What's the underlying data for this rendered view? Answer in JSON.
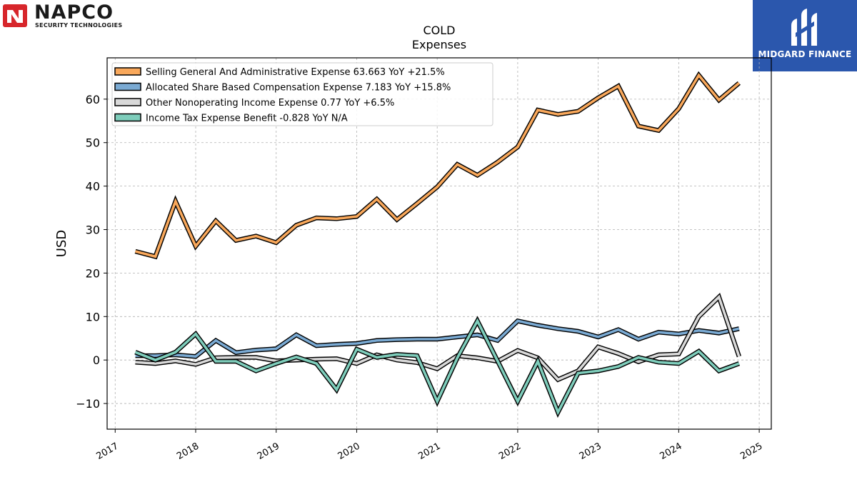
{
  "branding": {
    "left_logo_word": "NAPCO",
    "left_logo_sub": "SECURITY TECHNOLOGIES",
    "right_logo_name": "MIDGARD FINANCE",
    "right_logo_bg": "#2b57ad"
  },
  "chart_data": {
    "type": "line",
    "title": "COLD",
    "subtitle": "Expenses",
    "xlabel": "",
    "ylabel": "USD",
    "xlim": [
      2016.9,
      2025.15
    ],
    "ylim": [
      -15.9,
      69.5
    ],
    "x_ticks": [
      2017,
      2018,
      2019,
      2020,
      2021,
      2022,
      2023,
      2024,
      2025
    ],
    "y_ticks": [
      -10,
      0,
      10,
      20,
      30,
      40,
      50,
      60
    ],
    "grid": true,
    "legend_position": "top-left",
    "x": [
      2017.25,
      2017.5,
      2017.75,
      2018.0,
      2018.25,
      2018.5,
      2018.75,
      2019.0,
      2019.25,
      2019.5,
      2019.75,
      2020.0,
      2020.25,
      2020.5,
      2020.75,
      2021.0,
      2021.25,
      2021.5,
      2021.75,
      2022.0,
      2022.25,
      2022.5,
      2022.75,
      2023.0,
      2023.25,
      2023.5,
      2023.75,
      2024.0,
      2024.25,
      2024.5,
      2024.75
    ],
    "series": [
      {
        "name": "Selling General And Administrative Expense",
        "legend": "Selling General And Administrative Expense  63.663 YoY +21.5%",
        "color": "#f9a85b",
        "values": [
          25.0,
          23.8,
          36.5,
          26.2,
          32.0,
          27.5,
          28.5,
          27.0,
          31.0,
          32.7,
          32.5,
          33.0,
          37.0,
          32.3,
          36.0,
          39.8,
          45.0,
          42.5,
          45.5,
          49.0,
          57.5,
          56.5,
          57.2,
          60.3,
          63.0,
          53.8,
          52.8,
          57.8,
          65.5,
          59.8,
          63.7
        ]
      },
      {
        "name": "Allocated Share Based Compensation Expense",
        "legend": "Allocated Share Based Compensation Expense  7.183 YoY +15.8%",
        "color": "#7aaad3",
        "values": [
          1.0,
          1.0,
          1.2,
          0.8,
          4.5,
          1.7,
          2.3,
          2.6,
          5.8,
          3.3,
          3.6,
          3.8,
          4.5,
          4.7,
          4.8,
          4.8,
          5.3,
          5.8,
          4.5,
          9.0,
          8.0,
          7.2,
          6.6,
          5.3,
          7.0,
          4.8,
          6.4,
          6.0,
          6.8,
          6.2,
          7.2
        ]
      },
      {
        "name": "Other Nonoperating Income Expense",
        "legend": "Other Nonoperating Income Expense  0.77 YoY +6.5%",
        "color": "#d9d9d9",
        "values": [
          -0.5,
          -0.8,
          -0.2,
          -1.0,
          0.5,
          0.6,
          0.6,
          -0.2,
          0.0,
          0.2,
          0.3,
          -0.8,
          1.2,
          0.0,
          -0.6,
          -2.0,
          1.0,
          0.5,
          -0.3,
          2.2,
          0.5,
          -4.5,
          -2.5,
          3.0,
          1.5,
          -0.4,
          1.2,
          1.4,
          10.0,
          14.5,
          0.8
        ]
      },
      {
        "name": "Income Tax Expense Benefit",
        "legend": "Income Tax Expense Benefit  -0.828 YoY N/A",
        "color": "#7ecdbb",
        "values": [
          1.8,
          0.0,
          1.8,
          6.0,
          -0.3,
          -0.3,
          -2.5,
          -0.8,
          0.7,
          -0.8,
          -6.8,
          2.5,
          0.6,
          1.3,
          1.0,
          -9.5,
          0.5,
          9.0,
          -0.2,
          -9.5,
          -0.3,
          -12.0,
          -3.0,
          -2.5,
          -1.5,
          0.6,
          -0.5,
          -0.8,
          2.0,
          -2.5,
          -0.8
        ]
      }
    ]
  }
}
